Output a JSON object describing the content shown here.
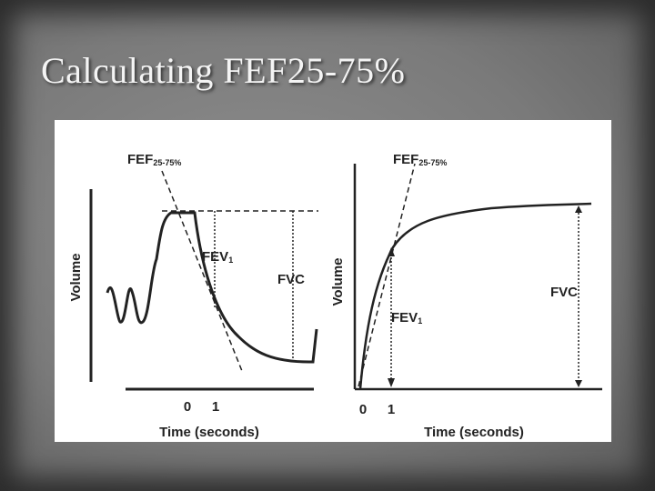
{
  "slide": {
    "title": "Calculating FEF25-75%"
  },
  "left_panel": {
    "y_label": "Volume",
    "x_label": "Time (seconds)",
    "x_ticks": [
      "0",
      "1"
    ],
    "fef": {
      "main": "FEF",
      "sub": "25-75%"
    },
    "fev": {
      "main": "FEV",
      "sub": "1"
    },
    "fvc": "FVC"
  },
  "right_panel": {
    "y_label": "Volume",
    "x_label": "Time (seconds)",
    "x_ticks": [
      "0",
      "1"
    ],
    "fef": {
      "main": "FEF",
      "sub": "25-75%"
    },
    "fev": {
      "main": "FEV",
      "sub": "1"
    },
    "fvc": "FVC"
  }
}
